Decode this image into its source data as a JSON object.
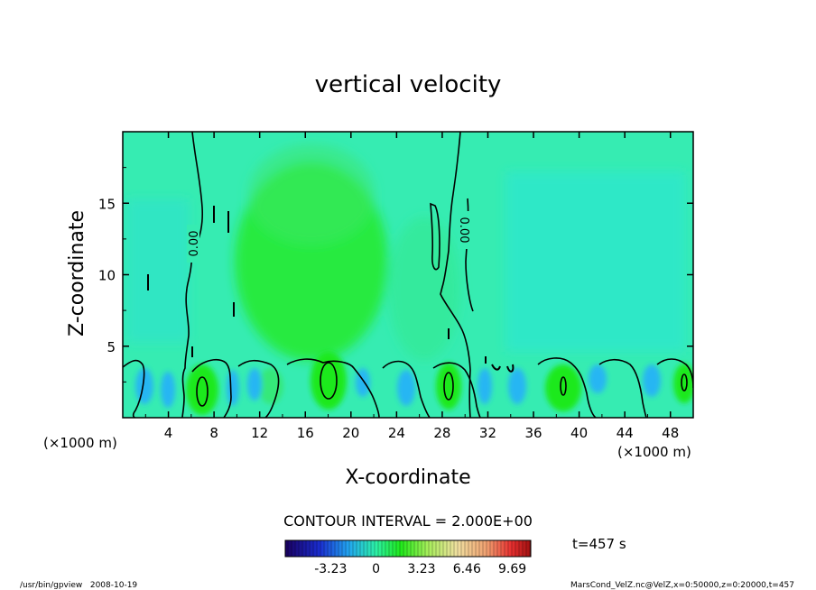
{
  "chart_data": {
    "type": "heatmap",
    "title": "vertical velocity",
    "xlabel": "X-coordinate",
    "ylabel": "Z-coordinate",
    "x_unit_left": "(×1000 m)",
    "x_unit_right": "(×1000 m)",
    "xlim": [
      0,
      50
    ],
    "ylim": [
      0,
      20
    ],
    "xticks": [
      4,
      8,
      12,
      16,
      20,
      24,
      28,
      32,
      36,
      40,
      44,
      48
    ],
    "yticks": [
      5,
      10,
      15
    ],
    "contour_labels": [
      "0.00",
      "0.00"
    ],
    "contour_interval": "CONTOUR INTERVAL = 2.000E+00",
    "colorbar": {
      "ticks": [
        "-3.23",
        "0",
        "3.23",
        "6.46",
        "9.69"
      ],
      "values": [
        -3.23,
        0,
        3.23,
        6.46,
        9.69
      ],
      "min": -6.46,
      "max": 11.0
    },
    "time_label": "t=457 s"
  },
  "footer": {
    "left": "/usr/bin/gpview   2008-10-19",
    "right": "MarsCond_VelZ.nc@VelZ,x=0:50000,z=0:20000,t=457"
  },
  "colors": {
    "background": "#2cf0a6",
    "zero_field": "#36ecb2",
    "positive": "#1fe91a",
    "negative": "#27b6f3",
    "contour": "#000000"
  }
}
